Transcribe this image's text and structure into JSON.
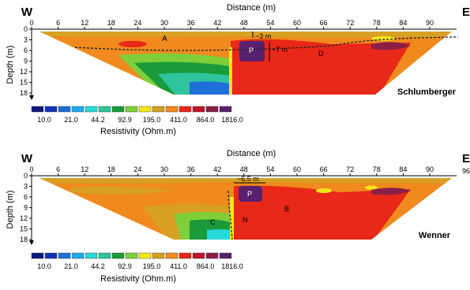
{
  "chart_data": [
    {
      "type": "heatmap",
      "survey_label": "Schlumberger",
      "title_label": "Distance (m)",
      "xlabel": "Distance (m)",
      "ylabel": "Depth (m)",
      "x_ticks": [
        0,
        6,
        12,
        18,
        24,
        30,
        36,
        42,
        48,
        54,
        60,
        66,
        72,
        78,
        84,
        90
      ],
      "y_ticks": [
        0,
        3,
        6,
        9,
        12,
        15,
        18
      ],
      "xlim": [
        0,
        96
      ],
      "ylim": [
        0,
        19
      ],
      "left_label": "W",
      "right_label": "E",
      "zone_labels": [
        "A",
        "P",
        "D"
      ],
      "annotations": [
        "~3 m",
        "~7 m"
      ],
      "colorbar_values": [
        10.0,
        21.0,
        44.2,
        92.9,
        195.0,
        411.0,
        864.0,
        1816.0
      ],
      "colorbar_label": "Resistivity (Ohm.m)"
    },
    {
      "type": "heatmap",
      "survey_label": "Wenner",
      "title_label": "Distance (m)",
      "xlabel": "Distance (m)",
      "ylabel": "Depth (m)",
      "x_ticks": [
        0,
        6,
        12,
        18,
        24,
        30,
        36,
        42,
        48,
        54,
        60,
        66,
        72,
        78,
        84,
        90
      ],
      "y_ticks": [
        0,
        3,
        6,
        9,
        12,
        15,
        18
      ],
      "xlim": [
        0,
        96
      ],
      "ylim": [
        0,
        19
      ],
      "left_label": "W",
      "right_label": "E",
      "right_tick_fragment": "96",
      "zone_labels": [
        "P",
        "B",
        "C",
        "N"
      ],
      "annotations": [
        "~6.5 m"
      ],
      "colorbar_values": [
        10.0,
        21.0,
        44.2,
        92.9,
        195.0,
        411.0,
        864.0,
        1816.0
      ],
      "colorbar_label": "Resistivity (Ohm.m)"
    }
  ],
  "colors": {
    "palette": [
      "#0d1a7a",
      "#1133bb",
      "#1e6fd8",
      "#23a8e8",
      "#29d9d9",
      "#2fc49c",
      "#1a9a3a",
      "#7fcf3a",
      "#f2e61a",
      "#d4a020",
      "#f08a1e",
      "#e82818",
      "#c0152a",
      "#8a1f48",
      "#5a2070"
    ],
    "background_orange": "#f08a1e",
    "red_zone": "#e82818",
    "purple_zone": "#5a2070",
    "dashed_line": "#222222"
  }
}
